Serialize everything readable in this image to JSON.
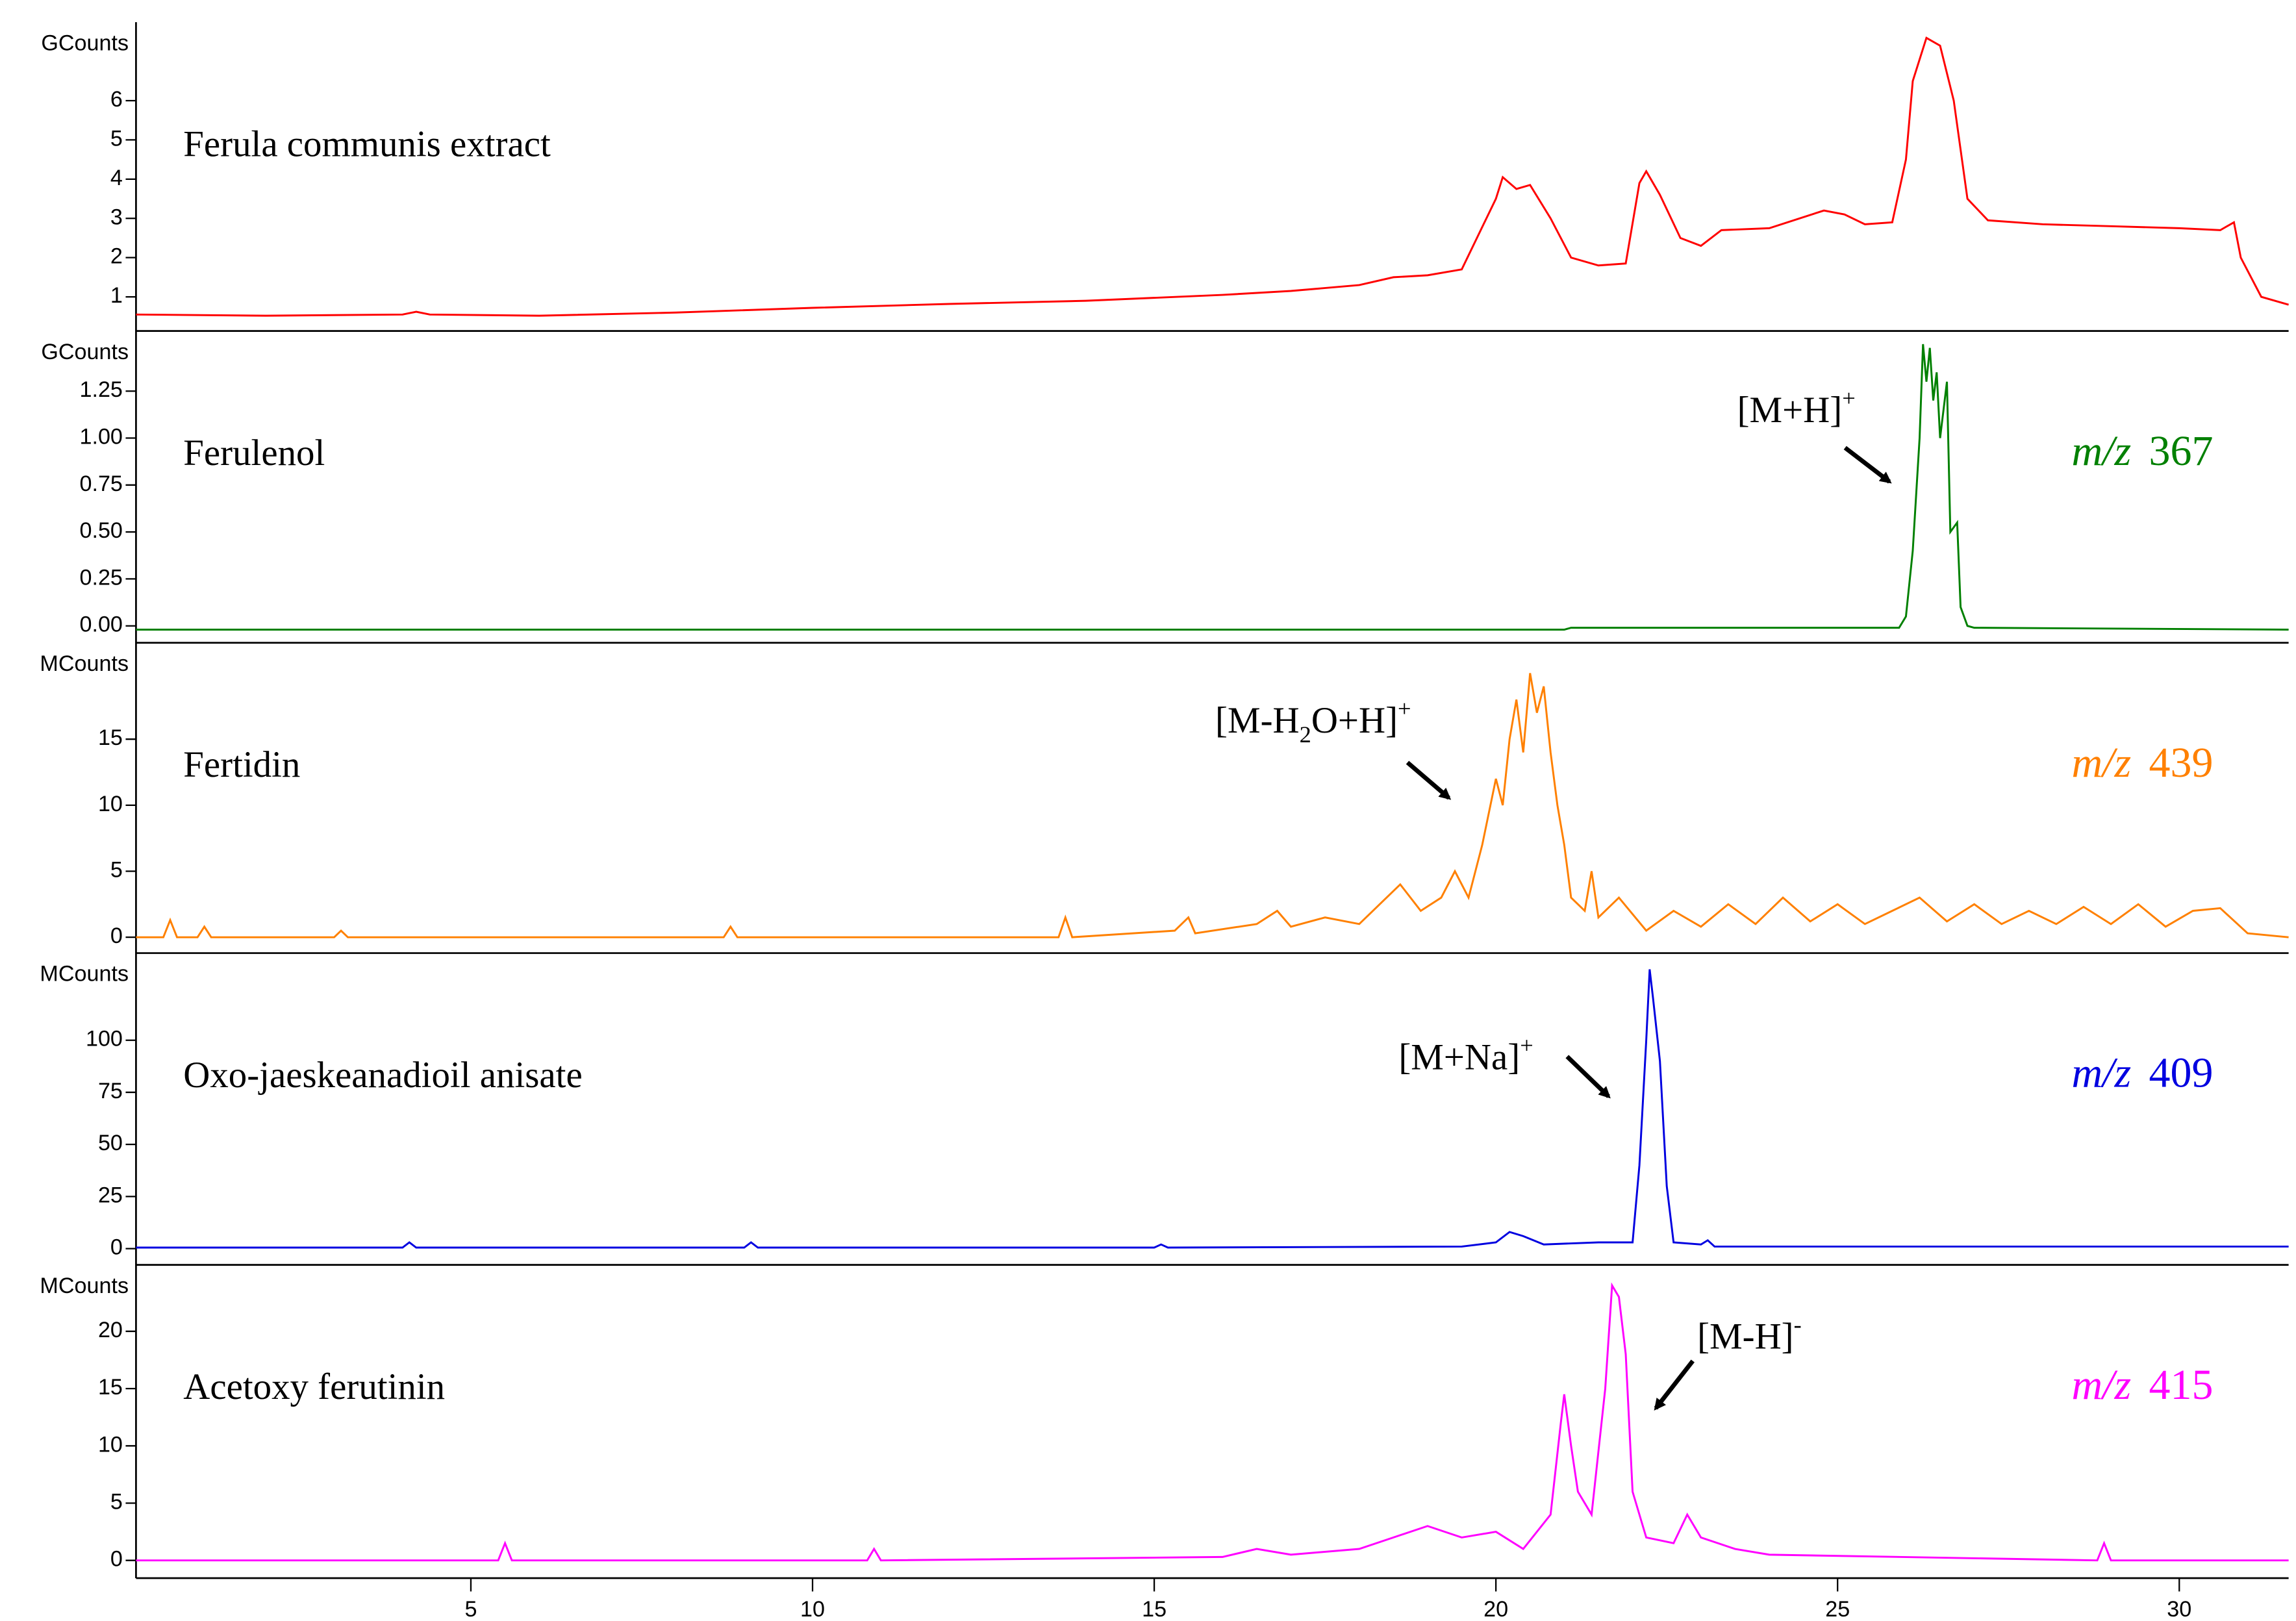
{
  "chart_data": [
    {
      "type": "line",
      "unit": "GCounts",
      "title": "Ferula communis extract",
      "color": "#ff0000",
      "x": [
        0.1,
        2,
        4,
        4.2,
        4.4,
        6,
        8,
        10,
        12,
        14,
        16,
        17,
        18,
        18.5,
        19,
        19.5,
        20,
        20.1,
        20.3,
        20.5,
        20.8,
        21.1,
        21.5,
        21.9,
        22.1,
        22.2,
        22.4,
        22.7,
        23,
        23.3,
        24,
        24.8,
        25.1,
        25.4,
        25.8,
        26,
        26.1,
        26.3,
        26.5,
        26.7,
        26.9,
        27.2,
        28,
        29,
        30,
        30.6,
        30.8,
        30.9,
        31.2,
        31.6
      ],
      "values": [
        0.55,
        0.52,
        0.55,
        0.62,
        0.55,
        0.52,
        0.6,
        0.72,
        0.82,
        0.9,
        1.05,
        1.15,
        1.3,
        1.5,
        1.55,
        1.7,
        3.5,
        4.05,
        3.75,
        3.85,
        3.0,
        2.0,
        1.8,
        1.85,
        3.9,
        4.2,
        3.6,
        2.5,
        2.3,
        2.7,
        2.75,
        3.2,
        3.1,
        2.85,
        2.9,
        4.5,
        6.5,
        7.6,
        7.4,
        6,
        3.5,
        2.95,
        2.85,
        2.8,
        2.75,
        2.7,
        2.9,
        2.0,
        1.0,
        0.8
      ],
      "xlim": [
        0.1,
        31.6
      ],
      "ylim": [
        0.13,
        8.0
      ],
      "yticks": [
        1,
        2,
        3,
        4,
        5,
        6
      ]
    },
    {
      "type": "line",
      "unit": "GCounts",
      "title": "Ferulenol",
      "color": "#008000",
      "mz": {
        "prefix": "m/z",
        "value": "367"
      },
      "ion": [
        {
          "text": "[M+H]"
        },
        {
          "text": "+",
          "style": "sup"
        }
      ],
      "x": [
        0.1,
        21,
        21.1,
        21.8,
        25.9,
        26,
        26.1,
        26.15,
        26.2,
        26.25,
        26.3,
        26.35,
        26.4,
        26.45,
        26.5,
        26.6,
        26.65,
        26.75,
        26.8,
        26.9,
        27,
        31.6
      ],
      "values": [
        -0.02,
        -0.02,
        -0.01,
        -0.01,
        -0.01,
        0.05,
        0.4,
        0.7,
        1.0,
        1.5,
        1.3,
        1.48,
        1.2,
        1.35,
        1.0,
        1.3,
        0.5,
        0.55,
        0.1,
        0.0,
        -0.01,
        -0.02
      ],
      "xlim": [
        0.1,
        31.6
      ],
      "ylim": [
        -0.09,
        1.57
      ],
      "yticks": [
        {
          "value": 0,
          "label": "0.00"
        },
        {
          "value": 0.25,
          "label": "0.25"
        },
        {
          "value": 0.5,
          "label": "0.50"
        },
        {
          "value": 0.75,
          "label": "0.75"
        },
        {
          "value": 1,
          "label": "1.00"
        },
        {
          "value": 1.25,
          "label": "1.25"
        }
      ]
    },
    {
      "type": "line",
      "unit": "MCounts",
      "title": "Fertidin",
      "color": "#ff8000",
      "mz": {
        "prefix": "m/z",
        "value": "439"
      },
      "ion": [
        {
          "text": "[M-H"
        },
        {
          "text": "2",
          "style": "sub"
        },
        {
          "text": "O+H]"
        },
        {
          "text": "+",
          "style": "sup"
        }
      ],
      "x": [
        0.1,
        0.5,
        0.6,
        0.7,
        1.0,
        1.1,
        1.2,
        3.0,
        3.1,
        3.2,
        8.7,
        8.8,
        8.9,
        13.6,
        13.7,
        13.8,
        15.3,
        15.5,
        15.6,
        16.5,
        16.8,
        17,
        17.5,
        18,
        18.3,
        18.6,
        18.9,
        19.2,
        19.4,
        19.6,
        19.8,
        20,
        20.1,
        20.2,
        20.3,
        20.4,
        20.5,
        20.6,
        20.7,
        20.8,
        20.9,
        21,
        21.1,
        21.3,
        21.4,
        21.5,
        21.8,
        22.2,
        22.6,
        23,
        23.4,
        23.8,
        24.2,
        24.6,
        25,
        25.4,
        25.8,
        26.2,
        26.6,
        27,
        27.4,
        27.8,
        28.2,
        28.6,
        29,
        29.4,
        29.8,
        30.2,
        30.6,
        31,
        31.6
      ],
      "values": [
        0,
        0,
        1.3,
        0,
        0,
        0.8,
        0,
        0,
        0.5,
        0,
        0,
        0.8,
        0,
        0,
        1.5,
        0,
        0.5,
        1.5,
        0.3,
        1,
        2,
        0.8,
        1.5,
        1,
        2.5,
        4,
        2,
        3,
        5,
        3,
        7,
        12,
        10,
        15,
        18,
        14,
        20,
        17,
        19,
        14,
        10,
        7,
        3,
        2,
        5,
        1.5,
        3,
        0.5,
        2,
        0.8,
        2.5,
        1,
        3,
        1.2,
        2.5,
        1,
        2,
        3,
        1.2,
        2.5,
        1,
        2,
        1,
        2.3,
        1,
        2.5,
        0.8,
        2,
        2.2,
        0.3,
        0
      ],
      "xlim": [
        0.1,
        31.6
      ],
      "ylim": [
        -1.2,
        22.3
      ],
      "yticks": [
        0,
        5,
        10,
        15
      ]
    },
    {
      "type": "line",
      "unit": "MCounts",
      "title": "Oxo-jaeskeanadioil anisate",
      "color": "#0000e0",
      "mz": {
        "prefix": "m/z",
        "value": "409"
      },
      "ion": [
        {
          "text": "[M+Na]"
        },
        {
          "text": "+",
          "style": "sup"
        }
      ],
      "x": [
        0.1,
        4,
        4.1,
        4.2,
        9,
        9.1,
        9.2,
        15,
        15.1,
        15.2,
        19.5,
        20,
        20.2,
        20.4,
        20.7,
        21.5,
        22,
        22.1,
        22.2,
        22.25,
        22.3,
        22.4,
        22.5,
        22.6,
        23,
        23.1,
        23.2,
        31.6
      ],
      "values": [
        0.5,
        0.5,
        3,
        0.5,
        0.5,
        3,
        0.5,
        0.5,
        2,
        0.5,
        1,
        3,
        8,
        6,
        2,
        3,
        3,
        40,
        100,
        134,
        120,
        90,
        30,
        3,
        2,
        4,
        1,
        1
      ],
      "xlim": [
        0.1,
        31.6
      ],
      "ylim": [
        -7.8,
        141.8
      ],
      "yticks": [
        0,
        25,
        50,
        75,
        100
      ]
    },
    {
      "type": "line",
      "unit": "MCounts",
      "title": "Acetoxy ferutinin",
      "color": "#ff00ff",
      "mz": {
        "prefix": "m/z",
        "value": "415"
      },
      "ion": [
        {
          "text": "[M-H]"
        },
        {
          "text": "-",
          "style": "sup"
        }
      ],
      "x": [
        0.1,
        5.4,
        5.5,
        5.6,
        10.8,
        10.9,
        11,
        16,
        16.5,
        17,
        18,
        18.5,
        19,
        19.5,
        20,
        20.4,
        20.8,
        20.95,
        21,
        21.1,
        21.2,
        21.4,
        21.6,
        21.7,
        21.8,
        21.9,
        22,
        22.2,
        22.6,
        22.8,
        23,
        23.5,
        24,
        28.8,
        28.9,
        29,
        31.6
      ],
      "values": [
        0,
        0,
        1.5,
        0,
        0,
        1,
        0,
        0.3,
        1,
        0.5,
        1,
        2,
        3,
        2,
        2.5,
        1,
        4,
        12,
        14.5,
        10,
        6,
        4,
        15,
        24,
        23,
        18,
        6,
        2,
        1.5,
        4,
        2,
        1,
        0.5,
        0,
        1.5,
        0,
        0
      ],
      "xlim": [
        0.1,
        31.6
      ],
      "ylim": [
        -1.55,
        25.8
      ],
      "yticks": [
        0,
        5,
        10,
        15,
        20
      ],
      "xticks": [
        5,
        10,
        15,
        20,
        25,
        30
      ]
    }
  ]
}
